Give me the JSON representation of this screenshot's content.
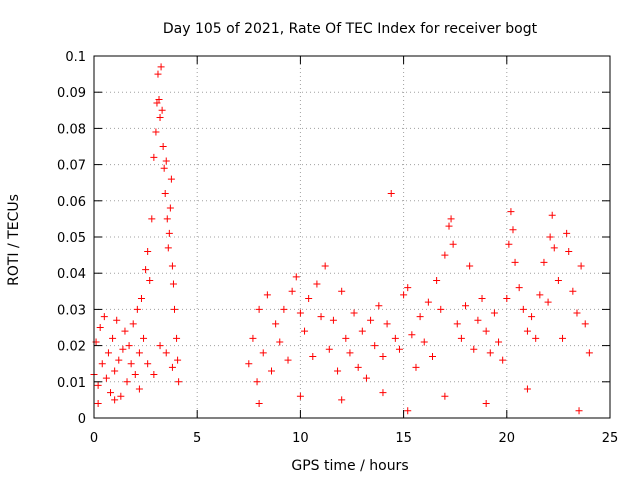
{
  "chart_data": {
    "type": "scatter",
    "title": "Day 105 of 2021, Rate Of TEC Index for receiver bogt",
    "xlabel": "GPS time / hours",
    "ylabel": "ROTI / TECUs",
    "xlim": [
      0,
      25
    ],
    "ylim": [
      0,
      0.1
    ],
    "xticks": [
      "0",
      "5",
      "10",
      "15",
      "20",
      "25"
    ],
    "yticks": [
      "0",
      "0.01",
      "0.02",
      "0.03",
      "0.04",
      "0.05",
      "0.06",
      "0.07",
      "0.08",
      "0.09",
      "0.1"
    ],
    "grid": true,
    "legend": "none",
    "marker": "plus",
    "color": "#ff0000",
    "series": [
      {
        "points": [
          [
            0.0,
            0.012
          ],
          [
            0.1,
            0.021
          ],
          [
            0.2,
            0.009
          ],
          [
            0.3,
            0.025
          ],
          [
            0.4,
            0.015
          ],
          [
            0.5,
            0.028
          ],
          [
            0.6,
            0.011
          ],
          [
            0.7,
            0.018
          ],
          [
            0.8,
            0.007
          ],
          [
            0.9,
            0.022
          ],
          [
            1.0,
            0.013
          ],
          [
            1.1,
            0.027
          ],
          [
            1.2,
            0.016
          ],
          [
            1.3,
            0.006
          ],
          [
            1.4,
            0.019
          ],
          [
            1.5,
            0.024
          ],
          [
            1.6,
            0.01
          ],
          [
            1.7,
            0.02
          ],
          [
            1.8,
            0.015
          ],
          [
            1.9,
            0.026
          ],
          [
            2.0,
            0.012
          ],
          [
            2.1,
            0.03
          ],
          [
            2.2,
            0.018
          ],
          [
            2.3,
            0.033
          ],
          [
            2.4,
            0.022
          ],
          [
            2.5,
            0.041
          ],
          [
            2.6,
            0.046
          ],
          [
            2.7,
            0.038
          ],
          [
            2.8,
            0.055
          ],
          [
            2.9,
            0.072
          ],
          [
            3.0,
            0.079
          ],
          [
            3.05,
            0.087
          ],
          [
            3.1,
            0.095
          ],
          [
            3.15,
            0.088
          ],
          [
            3.2,
            0.083
          ],
          [
            3.25,
            0.097
          ],
          [
            3.3,
            0.085
          ],
          [
            3.35,
            0.075
          ],
          [
            3.4,
            0.069
          ],
          [
            3.45,
            0.062
          ],
          [
            3.5,
            0.071
          ],
          [
            3.55,
            0.055
          ],
          [
            3.6,
            0.047
          ],
          [
            3.65,
            0.051
          ],
          [
            3.7,
            0.058
          ],
          [
            3.75,
            0.066
          ],
          [
            3.8,
            0.042
          ],
          [
            3.85,
            0.037
          ],
          [
            3.9,
            0.03
          ],
          [
            4.0,
            0.022
          ],
          [
            4.05,
            0.016
          ],
          [
            4.1,
            0.01
          ],
          [
            2.6,
            0.015
          ],
          [
            2.9,
            0.012
          ],
          [
            3.2,
            0.02
          ],
          [
            3.5,
            0.018
          ],
          [
            3.8,
            0.014
          ],
          [
            1.0,
            0.005
          ],
          [
            0.2,
            0.004
          ],
          [
            2.2,
            0.008
          ],
          [
            7.5,
            0.015
          ],
          [
            7.7,
            0.022
          ],
          [
            7.9,
            0.01
          ],
          [
            8.0,
            0.03
          ],
          [
            8.2,
            0.018
          ],
          [
            8.4,
            0.034
          ],
          [
            8.6,
            0.013
          ],
          [
            8.8,
            0.026
          ],
          [
            9.0,
            0.021
          ],
          [
            9.2,
            0.03
          ],
          [
            9.4,
            0.016
          ],
          [
            9.6,
            0.035
          ],
          [
            9.8,
            0.039
          ],
          [
            10.0,
            0.029
          ],
          [
            10.2,
            0.024
          ],
          [
            10.4,
            0.033
          ],
          [
            10.6,
            0.017
          ],
          [
            10.8,
            0.037
          ],
          [
            11.0,
            0.028
          ],
          [
            11.2,
            0.042
          ],
          [
            11.4,
            0.019
          ],
          [
            11.6,
            0.027
          ],
          [
            11.8,
            0.013
          ],
          [
            12.0,
            0.035
          ],
          [
            12.2,
            0.022
          ],
          [
            12.4,
            0.018
          ],
          [
            12.6,
            0.029
          ],
          [
            12.8,
            0.014
          ],
          [
            13.0,
            0.024
          ],
          [
            13.2,
            0.011
          ],
          [
            13.4,
            0.027
          ],
          [
            13.6,
            0.02
          ],
          [
            13.8,
            0.031
          ],
          [
            14.0,
            0.017
          ],
          [
            14.2,
            0.026
          ],
          [
            14.4,
            0.062
          ],
          [
            14.6,
            0.022
          ],
          [
            14.8,
            0.019
          ],
          [
            15.0,
            0.034
          ],
          [
            15.2,
            0.036
          ],
          [
            15.4,
            0.023
          ],
          [
            15.6,
            0.014
          ],
          [
            15.8,
            0.028
          ],
          [
            16.0,
            0.021
          ],
          [
            16.2,
            0.032
          ],
          [
            16.4,
            0.017
          ],
          [
            16.6,
            0.038
          ],
          [
            16.8,
            0.03
          ],
          [
            17.0,
            0.045
          ],
          [
            17.2,
            0.053
          ],
          [
            17.3,
            0.055
          ],
          [
            17.4,
            0.048
          ],
          [
            17.6,
            0.026
          ],
          [
            17.8,
            0.022
          ],
          [
            18.0,
            0.031
          ],
          [
            18.2,
            0.042
          ],
          [
            18.4,
            0.019
          ],
          [
            18.6,
            0.027
          ],
          [
            18.8,
            0.033
          ],
          [
            19.0,
            0.024
          ],
          [
            19.2,
            0.018
          ],
          [
            19.4,
            0.029
          ],
          [
            19.6,
            0.021
          ],
          [
            19.8,
            0.016
          ],
          [
            20.0,
            0.033
          ],
          [
            20.1,
            0.048
          ],
          [
            20.2,
            0.057
          ],
          [
            20.3,
            0.052
          ],
          [
            20.4,
            0.043
          ],
          [
            20.6,
            0.036
          ],
          [
            20.8,
            0.03
          ],
          [
            21.0,
            0.024
          ],
          [
            21.2,
            0.028
          ],
          [
            21.4,
            0.022
          ],
          [
            21.6,
            0.034
          ],
          [
            21.8,
            0.043
          ],
          [
            22.0,
            0.032
          ],
          [
            22.1,
            0.05
          ],
          [
            22.2,
            0.056
          ],
          [
            22.3,
            0.047
          ],
          [
            22.5,
            0.038
          ],
          [
            22.7,
            0.022
          ],
          [
            22.9,
            0.051
          ],
          [
            23.0,
            0.046
          ],
          [
            23.2,
            0.035
          ],
          [
            23.4,
            0.029
          ],
          [
            23.6,
            0.042
          ],
          [
            23.8,
            0.026
          ],
          [
            24.0,
            0.018
          ],
          [
            8.0,
            0.004
          ],
          [
            10.0,
            0.006
          ],
          [
            12.0,
            0.005
          ],
          [
            14.0,
            0.007
          ],
          [
            15.2,
            0.002
          ],
          [
            17.0,
            0.006
          ],
          [
            19.0,
            0.004
          ],
          [
            21.0,
            0.008
          ],
          [
            23.5,
            0.002
          ]
        ]
      }
    ]
  }
}
